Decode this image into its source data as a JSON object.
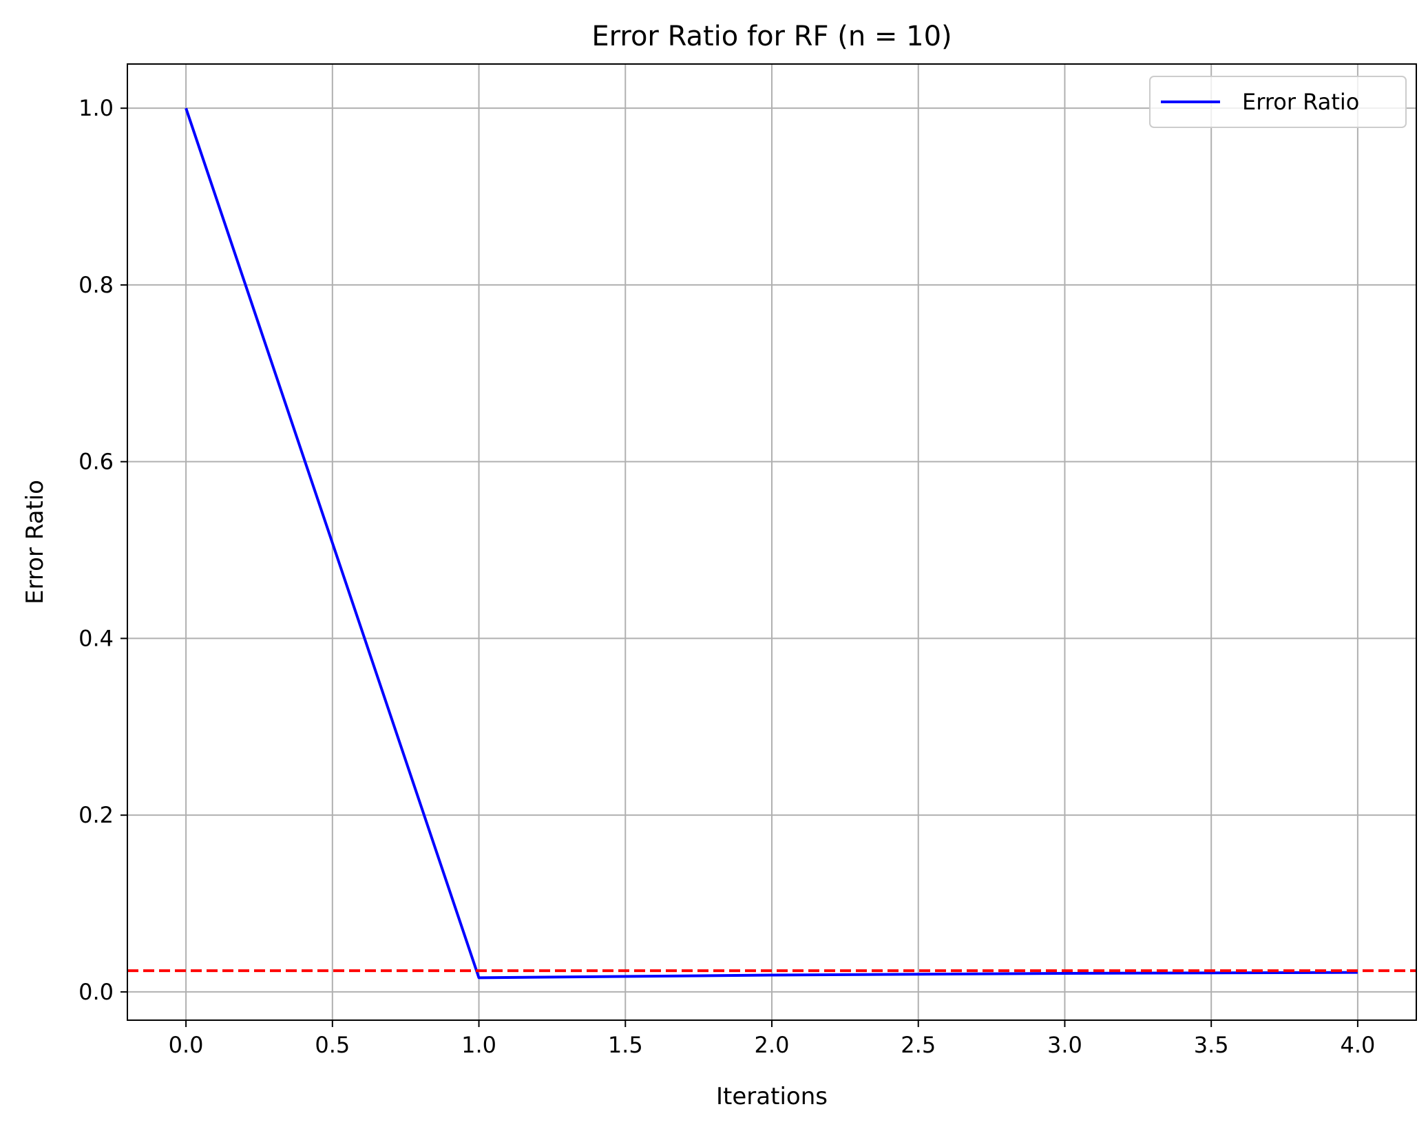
{
  "chart_data": {
    "type": "line",
    "title": "Error Ratio for RF (n = 10)",
    "xlabel": "Iterations",
    "ylabel": "Error Ratio",
    "xlim": [
      -0.2,
      4.2
    ],
    "ylim": [
      -0.032,
      1.05
    ],
    "xticks": [
      0.0,
      0.5,
      1.0,
      1.5,
      2.0,
      2.5,
      3.0,
      3.5,
      4.0
    ],
    "xtick_labels": [
      "0.0",
      "0.5",
      "1.0",
      "1.5",
      "2.0",
      "2.5",
      "3.0",
      "3.5",
      "4.0"
    ],
    "yticks": [
      0.0,
      0.2,
      0.4,
      0.6,
      0.8,
      1.0
    ],
    "ytick_labels": [
      "0.0",
      "0.2",
      "0.4",
      "0.6",
      "0.8",
      "1.0"
    ],
    "grid": true,
    "legend_position": "top-right",
    "series": [
      {
        "name": "Error Ratio",
        "color": "#0000ff",
        "style": "solid",
        "x": [
          0,
          1,
          2,
          3,
          4
        ],
        "y": [
          1.0,
          0.016,
          0.019,
          0.021,
          0.022
        ]
      }
    ],
    "reference_lines": [
      {
        "orientation": "horizontal",
        "y": 0.024,
        "color": "#ff0000",
        "style": "dashed"
      }
    ]
  }
}
